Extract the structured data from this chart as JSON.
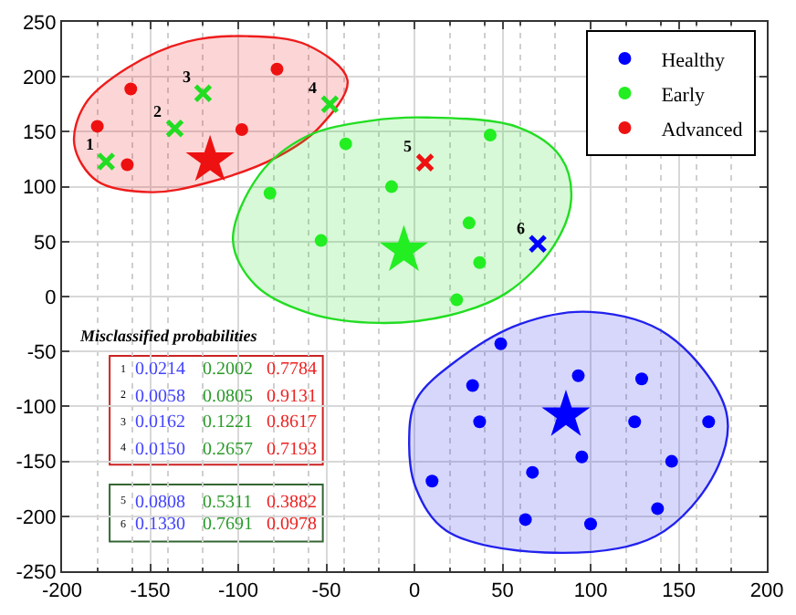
{
  "chart_data": {
    "type": "scatter",
    "xlim": [
      -200,
      200
    ],
    "xticks": [
      -200,
      -150,
      -100,
      -50,
      0,
      50,
      100,
      150,
      200
    ],
    "ylim": [
      -250,
      250
    ],
    "yticks": [
      -250,
      -200,
      -150,
      -100,
      -50,
      0,
      50,
      100,
      150,
      200,
      250
    ],
    "grid": true,
    "legend": "top right",
    "series": [
      {
        "type": "area",
        "color": "#ee1c1c",
        "x": [
          -193,
          -187,
          -163,
          -129,
          -95,
          -61,
          -38,
          -54,
          -78,
          -119,
          -149,
          -180,
          -193
        ],
        "values": [
          138,
          175,
          208,
          232,
          237,
          229,
          197,
          154,
          127,
          103,
          95,
          105,
          138
        ]
      },
      {
        "type": "area",
        "color": "#22dd22",
        "x": [
          -103,
          -88,
          -61,
          -25,
          7,
          59,
          83,
          89,
          79,
          52,
          20,
          -20,
          -60,
          -90,
          -103
        ],
        "values": [
          51,
          111,
          146,
          160,
          163,
          154,
          127,
          89,
          46,
          3,
          -17,
          -24,
          -15,
          10,
          51
        ]
      },
      {
        "type": "area",
        "color": "#2222ee",
        "x": [
          -3,
          1,
          25,
          60,
          100,
          144,
          177,
          171,
          137,
          74,
          18,
          1,
          -3
        ],
        "values": [
          -135,
          -94,
          -57,
          -25,
          -14,
          -35,
          -105,
          -159,
          -218,
          -233,
          -213,
          -175,
          -135
        ]
      },
      {
        "name": "Healthy",
        "color": "#0000ff",
        "marker": "circle",
        "x": [
          49,
          33,
          37,
          93,
          129,
          125,
          167,
          95,
          146,
          67,
          10,
          63,
          100,
          138
        ],
        "values": [
          -43,
          -81,
          -114,
          -72,
          -75,
          -114,
          -114,
          -146,
          -150,
          -160,
          -168,
          -203,
          -207,
          -193
        ]
      },
      {
        "name": "Early",
        "color": "#22ee22",
        "marker": "circle",
        "x": [
          -82,
          -53,
          -39,
          -13,
          43,
          31,
          37,
          24
        ],
        "values": [
          94,
          51,
          139,
          100,
          147,
          67,
          31,
          -3
        ]
      },
      {
        "name": "Advanced",
        "color": "#ee1111",
        "marker": "circle",
        "x": [
          -180,
          -161,
          -163,
          -98,
          -78
        ],
        "values": [
          155,
          189,
          120,
          152,
          207
        ]
      },
      {
        "marker": "star",
        "colors": [
          "#ee1111",
          "#22ee22",
          "#0000ff"
        ],
        "x": [
          -116,
          -6,
          86
        ],
        "values": [
          124,
          42,
          -108
        ]
      },
      {
        "marker": "cross",
        "colors": [
          "#22dd22",
          "#22dd22",
          "#22dd22",
          "#22dd22",
          "#ee1111",
          "#0000ff"
        ],
        "x": [
          -175,
          -136,
          -120,
          -48,
          6,
          70
        ],
        "values": [
          123,
          153,
          185,
          175,
          122,
          48
        ]
      }
    ],
    "annotations": [
      {
        "text": "1",
        "x": -175,
        "y": 123
      },
      {
        "text": "2",
        "x": -136,
        "y": 153
      },
      {
        "text": "3",
        "x": -120,
        "y": 185
      },
      {
        "text": "4",
        "x": -48,
        "y": 175
      },
      {
        "text": "5",
        "x": 6,
        "y": 122
      },
      {
        "text": "6",
        "x": 70,
        "y": 48
      },
      "Misclassified probabilities",
      "1",
      "0.0214",
      "0.2002",
      "0.7784",
      "2",
      "0.0058",
      "0.0805",
      "0.9131",
      "3",
      "0.0162",
      "0.1221",
      "0.8617",
      "4",
      "0.0150",
      "0.2657",
      "0.7193",
      "5",
      "0.0808",
      "0.5311",
      "0.3882",
      "6",
      "0.1330",
      "0.7691",
      "0.0978"
    ]
  }
}
